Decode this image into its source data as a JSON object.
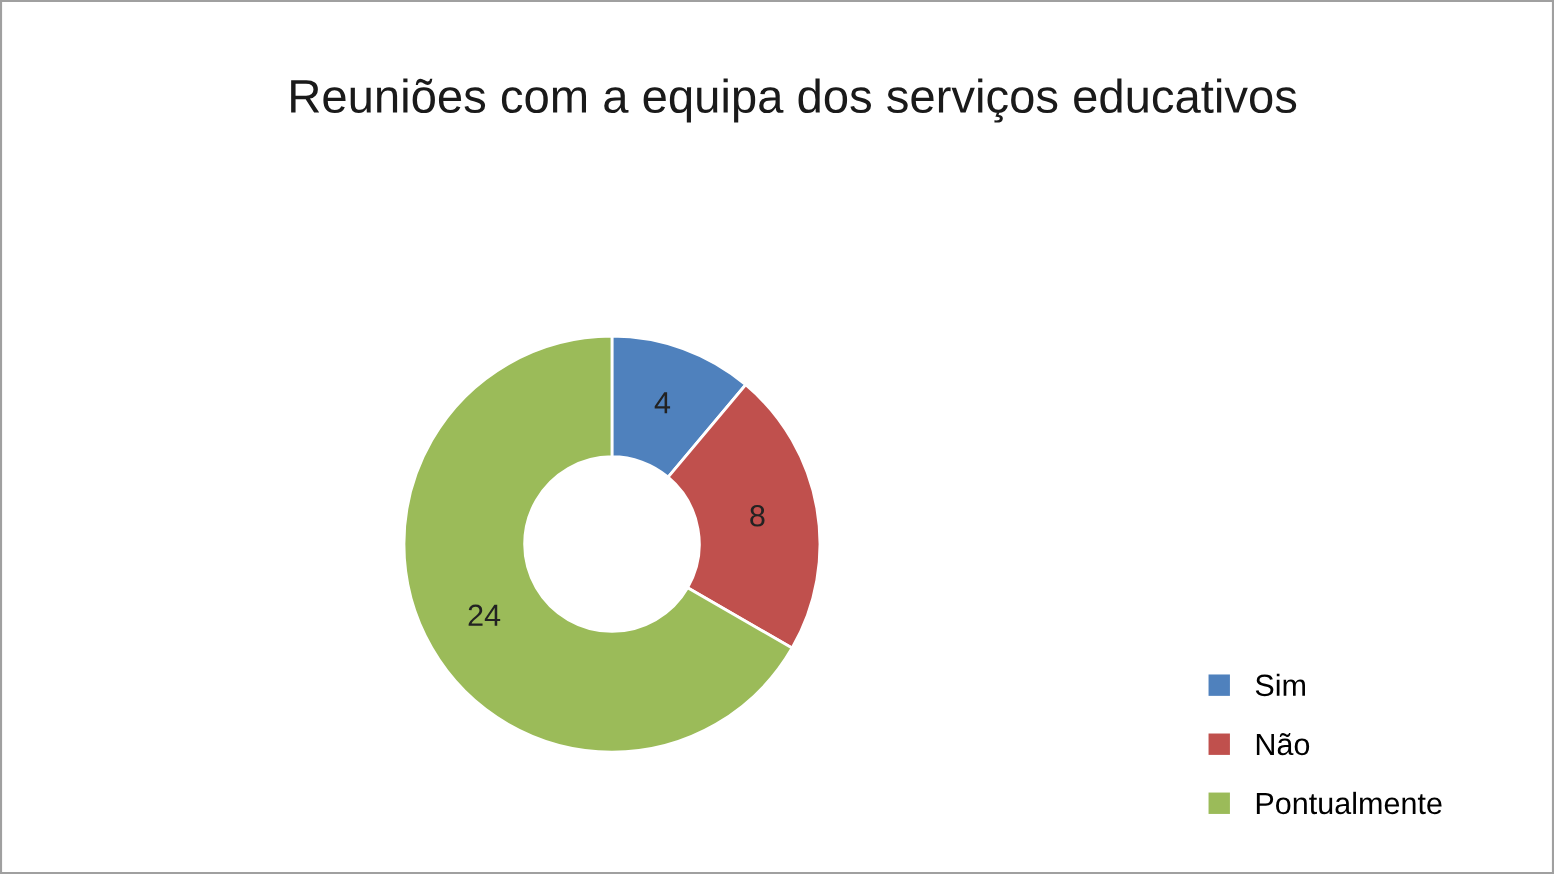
{
  "chart_data": {
    "type": "donut",
    "title": "Reuniões com a equipa dos serviços educativos",
    "categories": [
      "Sim",
      "Não",
      "Pontualmente"
    ],
    "values": [
      4,
      8,
      24
    ],
    "colors": [
      "#4f81bd",
      "#c0504d",
      "#9bbb59"
    ],
    "data_labels": true,
    "legend": "bottom right"
  }
}
